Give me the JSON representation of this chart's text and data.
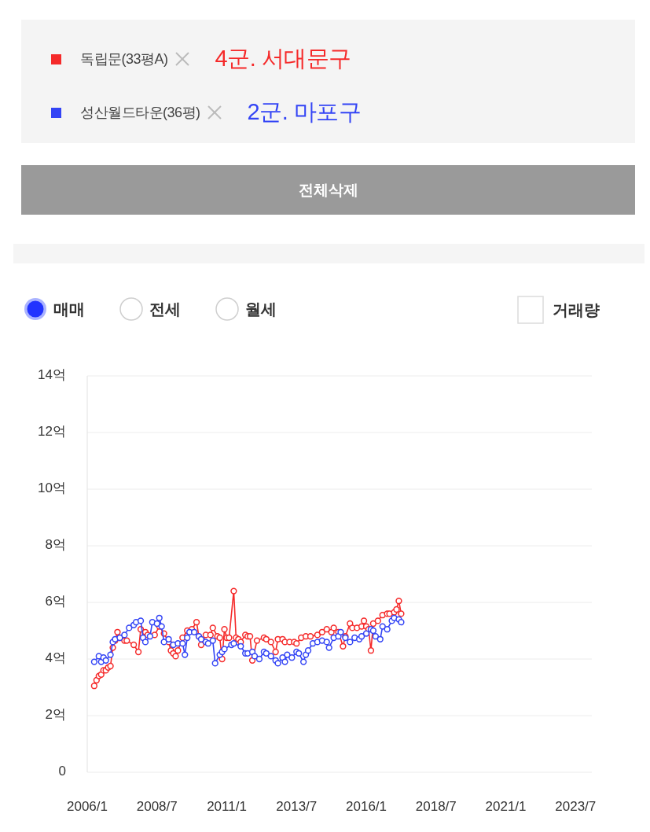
{
  "chart_data": {
    "type": "line",
    "legend": "top",
    "marker": "circle",
    "line_style": "solid",
    "grid": "y",
    "ylim": [
      0,
      14
    ],
    "yticks": [
      0,
      {
        "value": 2,
        "label": "2억"
      },
      {
        "value": 4,
        "label": "4억"
      },
      {
        "value": 6,
        "label": "6억"
      },
      {
        "value": 8,
        "label": "8억"
      },
      {
        "value": 10,
        "label": "10억"
      },
      {
        "value": 12,
        "label": "12억"
      },
      {
        "value": 14,
        "label": "14억"
      }
    ],
    "xlim": [
      "2006-01",
      "2024-02"
    ],
    "xticks": [
      {
        "value": "2006-01",
        "label": "2006/1"
      },
      {
        "value": "2008-07",
        "label": "2008/7"
      },
      {
        "value": "2011-01",
        "label": "2011/1"
      },
      {
        "value": "2013-07",
        "label": "2013/7"
      },
      {
        "value": "2016-01",
        "label": "2016/1"
      },
      {
        "value": "2018-07",
        "label": "2018/7"
      },
      {
        "value": "2021-01",
        "label": "2021/1"
      },
      {
        "value": "2023-07",
        "label": "2023/7"
      }
    ],
    "annotations": [
      "4군. 서대문구",
      "2군. 마포구",
      "전체삭제",
      "매매",
      "전세",
      "월세",
      "거래량"
    ],
    "series": [
      {
        "name": "독립문(33평A)",
        "color": "#f52a2a",
        "x": [
          "2006-04",
          "2006-05",
          "2006-06",
          "2006-07",
          "2006-08",
          "2006-09",
          "2006-10",
          "2006-11",
          "2006-12",
          "2007-01",
          "2007-02",
          "2007-03",
          "2007-05",
          "2007-06",
          "2007-09",
          "2007-11",
          "2007-12",
          "2008-02",
          "2008-03",
          "2008-06",
          "2008-08",
          "2008-10",
          "2008-12",
          "2009-01",
          "2009-02",
          "2009-03",
          "2009-04",
          "2009-06",
          "2009-08",
          "2009-10",
          "2009-12",
          "2010-01",
          "2010-02",
          "2010-04",
          "2010-06",
          "2010-07",
          "2010-09",
          "2010-10",
          "2010-11",
          "2010-12",
          "2011-01",
          "2011-02",
          "2011-04",
          "2011-05",
          "2011-06",
          "2011-07",
          "2011-09",
          "2011-10",
          "2011-11",
          "2011-12",
          "2012-02",
          "2012-05",
          "2012-06",
          "2012-08",
          "2012-10",
          "2012-11",
          "2013-01",
          "2013-02",
          "2013-04",
          "2013-06",
          "2013-07",
          "2013-09",
          "2013-11",
          "2014-01",
          "2014-04",
          "2014-06",
          "2014-08",
          "2014-10",
          "2014-11",
          "2015-01",
          "2015-03",
          "2015-04",
          "2015-06",
          "2015-07",
          "2015-09",
          "2015-11",
          "2015-12",
          "2016-01",
          "2016-02",
          "2016-03",
          "2016-04",
          "2016-06",
          "2016-08",
          "2016-10",
          "2016-11",
          "2017-01",
          "2017-02",
          "2017-03",
          "2017-04"
        ],
        "values": [
          3.05,
          3.25,
          3.4,
          3.45,
          3.6,
          3.6,
          3.7,
          3.75,
          4.4,
          4.65,
          4.95,
          4.75,
          4.65,
          4.65,
          4.5,
          4.25,
          5.05,
          4.95,
          4.85,
          4.85,
          5.15,
          4.9,
          4.6,
          4.3,
          4.2,
          4.1,
          4.3,
          4.75,
          5.0,
          5.05,
          5.3,
          4.8,
          4.5,
          4.85,
          4.85,
          5.1,
          4.8,
          4.75,
          4.0,
          5.05,
          4.75,
          4.75,
          6.4,
          4.75,
          4.7,
          4.6,
          4.85,
          4.8,
          4.8,
          3.95,
          4.65,
          4.75,
          4.7,
          4.6,
          4.25,
          4.7,
          4.7,
          4.6,
          4.6,
          4.6,
          4.55,
          4.75,
          4.8,
          4.8,
          4.85,
          4.95,
          5.05,
          4.95,
          5.1,
          4.95,
          4.45,
          4.8,
          5.25,
          5.1,
          5.1,
          5.15,
          5.35,
          5.15,
          5.05,
          4.3,
          5.25,
          5.35,
          5.55,
          5.6,
          5.6,
          5.65,
          5.75,
          6.05,
          5.6
        ]
      },
      {
        "name": "성산월드타운(36평)",
        "color": "#3344f5",
        "x": [
          "2006-04",
          "2006-06",
          "2006-07",
          "2006-08",
          "2006-09",
          "2006-11",
          "2006-12",
          "2007-01",
          "2007-03",
          "2007-05",
          "2007-07",
          "2007-09",
          "2007-10",
          "2007-12",
          "2008-01",
          "2008-02",
          "2008-04",
          "2008-05",
          "2008-07",
          "2008-08",
          "2008-09",
          "2008-10",
          "2008-12",
          "2009-02",
          "2009-04",
          "2009-06",
          "2009-07",
          "2009-08",
          "2009-09",
          "2009-11",
          "2010-01",
          "2010-02",
          "2010-04",
          "2010-05",
          "2010-07",
          "2010-08",
          "2010-10",
          "2010-11",
          "2010-12",
          "2011-03",
          "2011-04",
          "2011-07",
          "2011-09",
          "2011-10",
          "2011-12",
          "2012-01",
          "2012-03",
          "2012-05",
          "2012-06",
          "2012-08",
          "2012-10",
          "2012-11",
          "2013-01",
          "2013-02",
          "2013-03",
          "2013-05",
          "2013-07",
          "2013-08",
          "2013-10",
          "2013-11",
          "2013-12",
          "2014-02",
          "2014-04",
          "2014-06",
          "2014-08",
          "2014-09",
          "2014-11",
          "2015-01",
          "2015-02",
          "2015-04",
          "2015-06",
          "2015-08",
          "2015-10",
          "2015-11",
          "2016-01",
          "2016-03",
          "2016-04",
          "2016-05",
          "2016-07",
          "2016-08",
          "2016-10",
          "2016-12",
          "2017-01",
          "2017-03",
          "2017-04"
        ],
        "values": [
          3.9,
          4.1,
          3.9,
          4.05,
          3.95,
          4.15,
          4.6,
          4.7,
          4.75,
          4.85,
          5.1,
          5.2,
          5.3,
          5.35,
          4.75,
          4.6,
          4.8,
          5.3,
          5.25,
          5.45,
          5.15,
          4.6,
          4.7,
          4.5,
          4.55,
          4.55,
          4.15,
          4.75,
          4.95,
          4.95,
          4.8,
          4.7,
          4.6,
          4.55,
          4.65,
          3.85,
          4.15,
          4.25,
          4.35,
          4.5,
          4.55,
          4.45,
          4.2,
          4.2,
          4.25,
          4.1,
          4.0,
          4.25,
          4.2,
          4.1,
          3.95,
          3.85,
          4.05,
          3.9,
          4.15,
          4.05,
          4.25,
          4.2,
          3.9,
          4.15,
          4.3,
          4.55,
          4.6,
          4.65,
          4.6,
          4.4,
          4.75,
          4.8,
          4.95,
          4.75,
          4.6,
          4.75,
          4.7,
          4.8,
          4.9,
          5.05,
          5.0,
          4.8,
          4.7,
          5.15,
          5.05,
          5.35,
          5.45,
          5.4,
          5.3
        ]
      }
    ]
  }
}
